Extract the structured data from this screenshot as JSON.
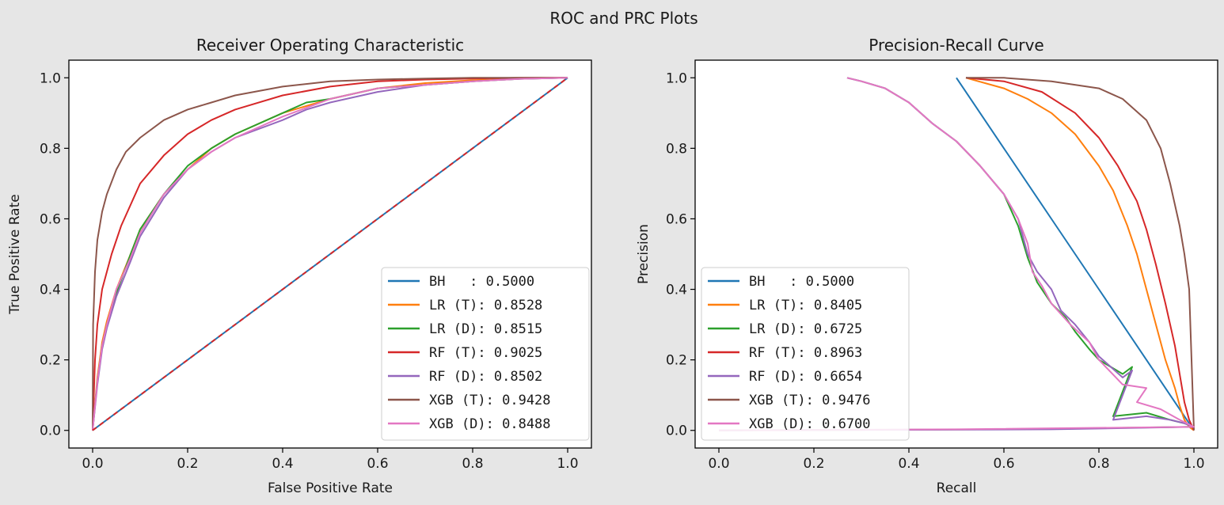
{
  "figure": {
    "title": "ROC and PRC Plots"
  },
  "chart_data": [
    {
      "type": "line",
      "title": "Receiver Operating Characteristic",
      "xlabel": "False Positive Rate",
      "ylabel": "True Positive Rate",
      "xlim": [
        -0.05,
        1.05
      ],
      "ylim": [
        -0.05,
        1.05
      ],
      "xticks": [
        "0.0",
        "0.2",
        "0.4",
        "0.6",
        "0.8",
        "1.0"
      ],
      "yticks": [
        "0.0",
        "0.2",
        "0.4",
        "0.6",
        "0.8",
        "1.0"
      ],
      "grid": false,
      "legend_position": "lower-right",
      "series": [
        {
          "name": "BH   : 0.5000",
          "color": "#1f77b4",
          "dashed": false,
          "x": [
            0,
            1
          ],
          "y": [
            0,
            1
          ]
        },
        {
          "name": "LR (T): 0.8528",
          "color": "#ff7f0e",
          "dashed": false,
          "x": [
            0,
            0.01,
            0.02,
            0.03,
            0.05,
            0.08,
            0.1,
            0.15,
            0.2,
            0.25,
            0.3,
            0.4,
            0.5,
            0.6,
            0.7,
            0.8,
            0.9,
            1.0
          ],
          "y": [
            0,
            0.15,
            0.25,
            0.31,
            0.4,
            0.5,
            0.57,
            0.67,
            0.74,
            0.8,
            0.84,
            0.9,
            0.94,
            0.97,
            0.985,
            0.993,
            0.998,
            1.0
          ]
        },
        {
          "name": "LR (D): 0.8515",
          "color": "#2ca02c",
          "dashed": false,
          "x": [
            0,
            0.01,
            0.02,
            0.03,
            0.05,
            0.08,
            0.1,
            0.15,
            0.2,
            0.25,
            0.3,
            0.4,
            0.45,
            0.5,
            0.6,
            0.7,
            0.8,
            0.9,
            1.0
          ],
          "y": [
            0,
            0.14,
            0.24,
            0.3,
            0.39,
            0.5,
            0.57,
            0.67,
            0.75,
            0.8,
            0.84,
            0.9,
            0.93,
            0.94,
            0.97,
            0.98,
            0.99,
            0.997,
            1.0
          ]
        },
        {
          "name": "RF (T): 0.9025",
          "color": "#d62728",
          "dashed": false,
          "x": [
            0,
            0.005,
            0.01,
            0.02,
            0.04,
            0.06,
            0.08,
            0.1,
            0.15,
            0.2,
            0.25,
            0.3,
            0.4,
            0.5,
            0.6,
            0.7,
            0.8,
            0.9,
            1.0
          ],
          "y": [
            0,
            0.2,
            0.3,
            0.4,
            0.5,
            0.58,
            0.64,
            0.7,
            0.78,
            0.84,
            0.88,
            0.91,
            0.95,
            0.975,
            0.99,
            0.995,
            0.998,
            1.0,
            1.0
          ]
        },
        {
          "name": "RF (D): 0.8502",
          "color": "#9467bd",
          "dashed": false,
          "x": [
            0,
            0.01,
            0.02,
            0.03,
            0.05,
            0.08,
            0.1,
            0.15,
            0.2,
            0.25,
            0.3,
            0.4,
            0.45,
            0.5,
            0.6,
            0.7,
            0.8,
            0.9,
            1.0
          ],
          "y": [
            0,
            0.13,
            0.23,
            0.29,
            0.38,
            0.48,
            0.55,
            0.66,
            0.74,
            0.79,
            0.83,
            0.88,
            0.91,
            0.93,
            0.96,
            0.98,
            0.99,
            0.997,
            1.0
          ]
        },
        {
          "name": "XGB (T): 0.9428",
          "color": "#8c564b",
          "dashed": false,
          "x": [
            0,
            0.001,
            0.005,
            0.01,
            0.02,
            0.03,
            0.05,
            0.07,
            0.1,
            0.15,
            0.2,
            0.25,
            0.3,
            0.4,
            0.5,
            0.6,
            0.7,
            0.8,
            0.9,
            1.0
          ],
          "y": [
            0,
            0.3,
            0.45,
            0.54,
            0.62,
            0.67,
            0.74,
            0.79,
            0.83,
            0.88,
            0.91,
            0.93,
            0.95,
            0.975,
            0.99,
            0.995,
            0.998,
            1.0,
            1.0,
            1.0
          ]
        },
        {
          "name": "XGB (D): 0.8488",
          "color": "#e377c2",
          "dashed": false,
          "x": [
            0,
            0.01,
            0.02,
            0.03,
            0.05,
            0.08,
            0.1,
            0.15,
            0.2,
            0.25,
            0.3,
            0.4,
            0.5,
            0.6,
            0.7,
            0.8,
            0.9,
            1.0
          ],
          "y": [
            0,
            0.14,
            0.24,
            0.3,
            0.4,
            0.49,
            0.56,
            0.67,
            0.74,
            0.79,
            0.83,
            0.89,
            0.94,
            0.97,
            0.98,
            0.99,
            0.997,
            1.0
          ]
        },
        {
          "name": "",
          "color": "#d62728",
          "dashed": true,
          "x": [
            0,
            1
          ],
          "y": [
            0,
            1
          ]
        }
      ]
    },
    {
      "type": "line",
      "title": "Precision-Recall Curve",
      "xlabel": "Recall",
      "ylabel": "Precision",
      "xlim": [
        -0.05,
        1.05
      ],
      "ylim": [
        -0.05,
        1.05
      ],
      "xticks": [
        "0.0",
        "0.2",
        "0.4",
        "0.6",
        "0.8",
        "1.0"
      ],
      "yticks": [
        "0.0",
        "0.2",
        "0.4",
        "0.6",
        "0.8",
        "1.0"
      ],
      "grid": false,
      "legend_position": "lower-left",
      "series": [
        {
          "name": "BH   : 0.5000",
          "color": "#1f77b4",
          "dashed": false,
          "x": [
            0.5,
            0.6,
            0.7,
            0.8,
            0.9,
            0.95,
            1.0
          ],
          "y": [
            1.0,
            0.8,
            0.6,
            0.4,
            0.2,
            0.1,
            0.0
          ]
        },
        {
          "name": "LR (T): 0.8405",
          "color": "#ff7f0e",
          "dashed": false,
          "x": [
            0.52,
            0.6,
            0.65,
            0.7,
            0.75,
            0.8,
            0.83,
            0.86,
            0.88,
            0.9,
            0.92,
            0.94,
            0.96,
            0.97,
            0.98,
            0.99,
            1.0
          ],
          "y": [
            1.0,
            0.97,
            0.94,
            0.9,
            0.84,
            0.75,
            0.68,
            0.58,
            0.5,
            0.4,
            0.3,
            0.2,
            0.12,
            0.07,
            0.03,
            0.01,
            0.0
          ]
        },
        {
          "name": "LR (D): 0.6725",
          "color": "#2ca02c",
          "dashed": false,
          "x": [
            0.27,
            0.3,
            0.35,
            0.4,
            0.45,
            0.5,
            0.55,
            0.6,
            0.63,
            0.65,
            0.67,
            0.7,
            0.73,
            0.75,
            0.78,
            0.8,
            0.85,
            0.87,
            0.83,
            0.9,
            0.95,
            0.98,
            1.0,
            0.6,
            0.0
          ],
          "y": [
            1.0,
            0.99,
            0.97,
            0.93,
            0.87,
            0.82,
            0.75,
            0.67,
            0.58,
            0.49,
            0.42,
            0.36,
            0.32,
            0.28,
            0.23,
            0.2,
            0.16,
            0.18,
            0.04,
            0.05,
            0.03,
            0.02,
            0.01,
            0.003,
            0.0
          ]
        },
        {
          "name": "RF (T): 0.8963",
          "color": "#d62728",
          "dashed": false,
          "x": [
            0.52,
            0.6,
            0.68,
            0.75,
            0.8,
            0.84,
            0.88,
            0.9,
            0.92,
            0.94,
            0.96,
            0.97,
            0.98,
            0.99,
            1.0
          ],
          "y": [
            1.0,
            0.99,
            0.96,
            0.9,
            0.83,
            0.75,
            0.65,
            0.57,
            0.47,
            0.36,
            0.24,
            0.16,
            0.08,
            0.03,
            0.0
          ]
        },
        {
          "name": "RF (D): 0.6654",
          "color": "#9467bd",
          "dashed": false,
          "x": [
            0.27,
            0.3,
            0.35,
            0.4,
            0.45,
            0.5,
            0.55,
            0.6,
            0.63,
            0.65,
            0.67,
            0.7,
            0.72,
            0.75,
            0.78,
            0.8,
            0.85,
            0.87,
            0.83,
            0.9,
            0.95,
            0.98,
            1.0,
            0.7,
            0.0
          ],
          "y": [
            1.0,
            0.99,
            0.97,
            0.93,
            0.87,
            0.82,
            0.75,
            0.67,
            0.6,
            0.5,
            0.45,
            0.4,
            0.34,
            0.3,
            0.25,
            0.21,
            0.15,
            0.17,
            0.03,
            0.04,
            0.03,
            0.02,
            0.01,
            0.003,
            0.0
          ]
        },
        {
          "name": "XGB (T): 0.9476",
          "color": "#8c564b",
          "dashed": false,
          "x": [
            0.52,
            0.6,
            0.7,
            0.8,
            0.85,
            0.9,
            0.93,
            0.95,
            0.97,
            0.98,
            0.99,
            0.995,
            1.0
          ],
          "y": [
            1.0,
            1.0,
            0.99,
            0.97,
            0.94,
            0.88,
            0.8,
            0.7,
            0.58,
            0.5,
            0.4,
            0.2,
            0.0
          ]
        },
        {
          "name": "XGB (D): 0.6700",
          "color": "#e377c2",
          "dashed": false,
          "x": [
            0.27,
            0.3,
            0.35,
            0.4,
            0.45,
            0.5,
            0.55,
            0.6,
            0.63,
            0.65,
            0.66,
            0.68,
            0.7,
            0.74,
            0.78,
            0.8,
            0.85,
            0.9,
            0.88,
            0.93,
            0.97,
            1.0,
            0.5,
            0.0
          ],
          "y": [
            1.0,
            0.99,
            0.97,
            0.93,
            0.87,
            0.82,
            0.75,
            0.67,
            0.6,
            0.53,
            0.45,
            0.41,
            0.36,
            0.3,
            0.25,
            0.2,
            0.13,
            0.12,
            0.08,
            0.06,
            0.03,
            0.01,
            0.003,
            0.0
          ]
        }
      ]
    }
  ]
}
